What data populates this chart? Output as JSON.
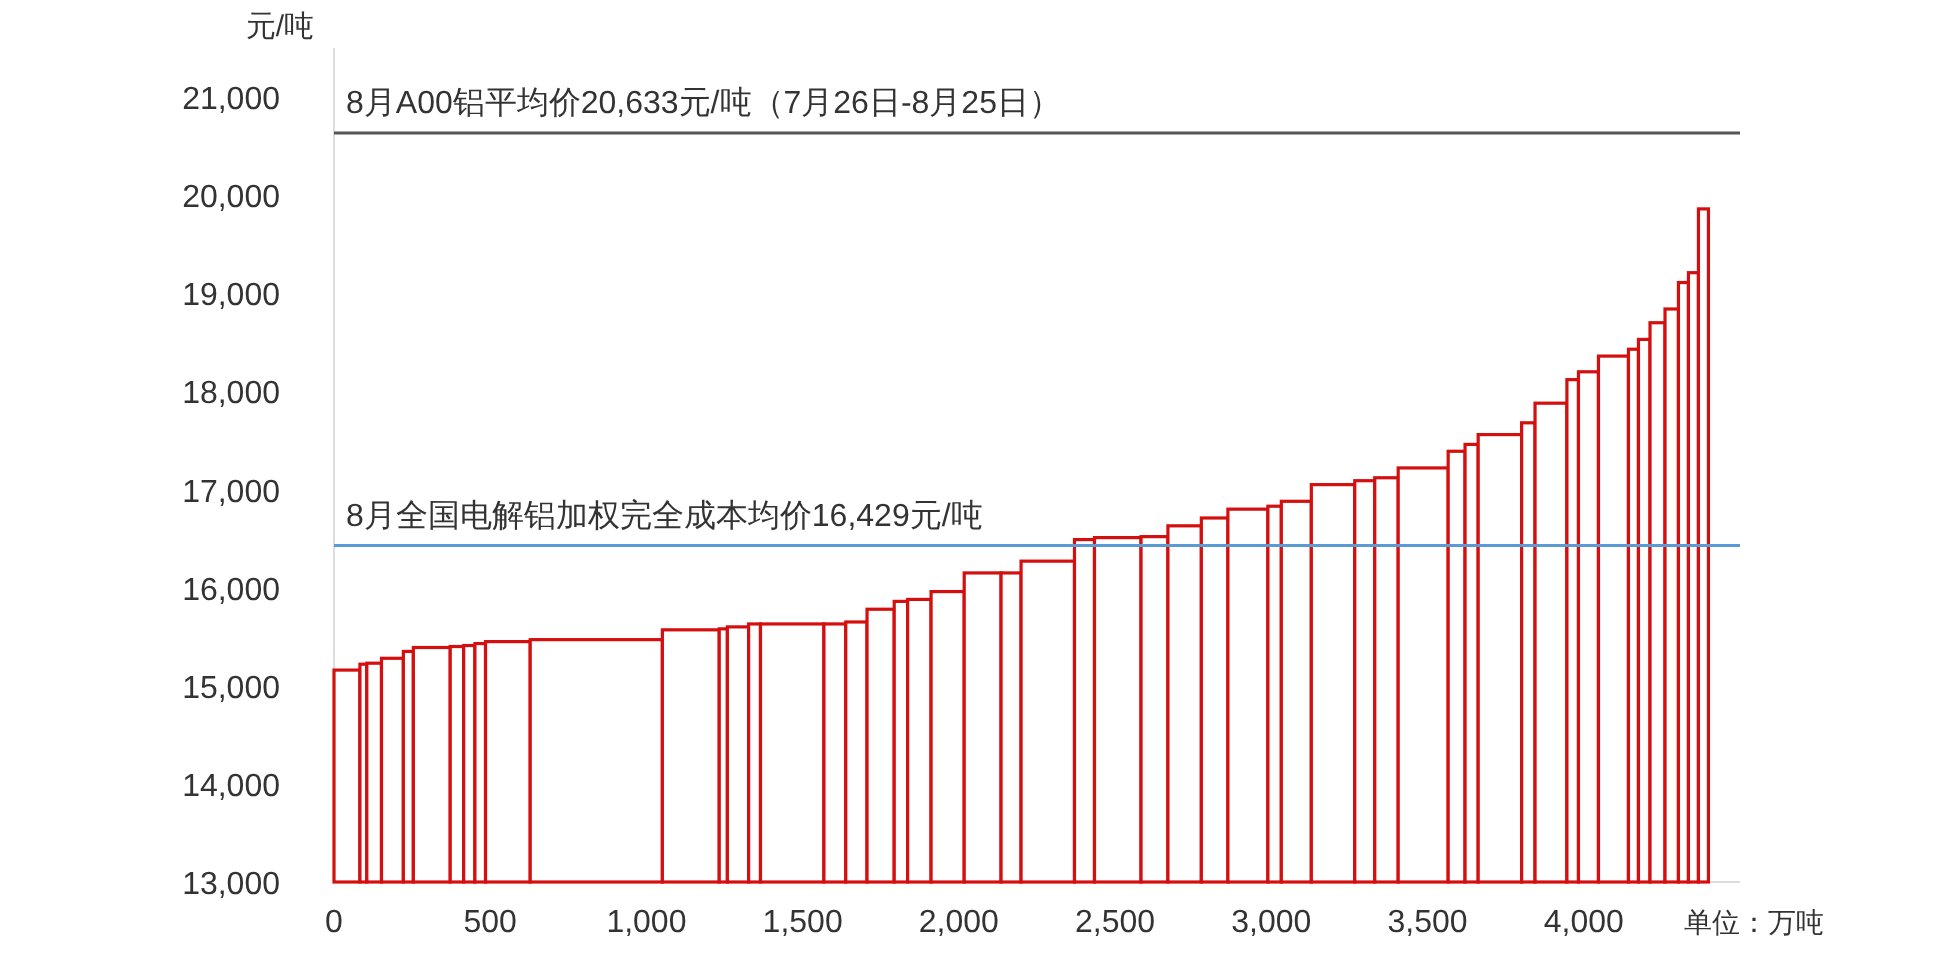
{
  "chart_data": {
    "type": "histogram",
    "ylabel": "元/吨",
    "xlabel": "单位：万吨",
    "bins": [
      0,
      83,
      105,
      152,
      222,
      254,
      372,
      415,
      451,
      485,
      628,
      1051,
      1233,
      1259,
      1327,
      1365,
      1568,
      1638,
      1706,
      1793,
      1836,
      1911,
      2017,
      2135,
      2199,
      2370,
      2434,
      2583,
      2669,
      2776,
      2861,
      2989,
      3032,
      3128,
      3267,
      3331,
      3406,
      3566,
      3620,
      3662,
      3801,
      3844,
      3946,
      3983,
      4047,
      4143,
      4175,
      4212,
      4260,
      4303,
      4335,
      4367,
      4399
    ],
    "values": [
      15160,
      15220,
      15230,
      15280,
      15350,
      15390,
      15400,
      15410,
      15430,
      15450,
      15470,
      15570,
      15580,
      15600,
      15630,
      15630,
      15630,
      15650,
      15780,
      15860,
      15880,
      15960,
      16150,
      16150,
      16270,
      16490,
      16510,
      16520,
      16630,
      16710,
      16800,
      16830,
      16880,
      17050,
      17090,
      17120,
      17220,
      17390,
      17460,
      17560,
      17680,
      17880,
      18120,
      18200,
      18360,
      18430,
      18530,
      18700,
      18840,
      19110,
      19210,
      19860
    ],
    "color": "#d40f0f",
    "xlim": [
      0,
      4500
    ],
    "ylim": [
      13000,
      21500
    ],
    "xticks": [
      0,
      500,
      {
        "value": 1000,
        "label": "1,000"
      },
      {
        "value": 1500,
        "label": "1,500"
      },
      {
        "value": 2000,
        "label": "2,000"
      },
      {
        "value": 2500,
        "label": "2,500"
      },
      {
        "value": 3000,
        "label": "3,000"
      },
      {
        "value": 3500,
        "label": "3,500"
      },
      {
        "value": 4000,
        "label": "4,000"
      }
    ],
    "yticks": [
      {
        "value": 13000,
        "label": "13,000"
      },
      {
        "value": 14000,
        "label": "14,000"
      },
      {
        "value": 15000,
        "label": "15,000"
      },
      {
        "value": 16000,
        "label": "16,000"
      },
      {
        "value": 17000,
        "label": "17,000"
      },
      {
        "value": 18000,
        "label": "18,000"
      },
      {
        "value": 19000,
        "label": "19,000"
      },
      {
        "value": 20000,
        "label": "20,000"
      },
      {
        "value": 21000,
        "label": "21,000"
      }
    ],
    "ref_lines": [
      {
        "axis": "y",
        "value": 20633,
        "label": "8月A00铝平均价20,633元/吨（7月26日-8月25日）",
        "color": "#555555"
      },
      {
        "axis": "y",
        "value": 16429,
        "label": "8月全国电解铝加权完全成本均价16,429元/吨",
        "color": "#5b9bd5"
      }
    ],
    "grid": false
  }
}
